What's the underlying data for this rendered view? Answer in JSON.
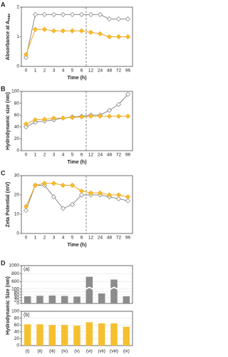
{
  "chart_data": [
    {
      "type": "line",
      "panel": "A",
      "ylabel": "Absorbance at A",
      "ylabel_sub": "max",
      "xlabel": "Time (h)",
      "categories": [
        "0",
        "1",
        "2",
        "3",
        "4",
        "5",
        "6",
        "12",
        "24",
        "48",
        "72",
        "96"
      ],
      "ylim": [
        0,
        2
      ],
      "yticks": [
        0,
        1,
        2
      ],
      "series": [
        {
          "color": "#8a8a8a",
          "fill": "#ffffff",
          "values": [
            0.3,
            1.75,
            1.75,
            1.75,
            1.75,
            1.75,
            1.75,
            1.75,
            1.75,
            1.6,
            1.6,
            1.6
          ]
        },
        {
          "color": "#f0a818",
          "fill": "#f5c030",
          "values": [
            0.4,
            1.25,
            1.25,
            1.2,
            1.2,
            1.2,
            1.2,
            1.15,
            1.1,
            1.0,
            1.0,
            1.0
          ]
        }
      ]
    },
    {
      "type": "line",
      "panel": "B",
      "ylabel": "Hydrodynamic size (nm)",
      "xlabel": "Time (h)",
      "categories": [
        "0",
        "1",
        "2",
        "3",
        "4",
        "5",
        "6",
        "12",
        "24",
        "48",
        "72",
        "96"
      ],
      "ylim": [
        0,
        100
      ],
      "yticks": [
        0,
        20,
        40,
        60,
        80,
        100
      ],
      "series": [
        {
          "color": "#8a8a8a",
          "fill": "#ffffff",
          "values": [
            40,
            48,
            50,
            52,
            55,
            57,
            58,
            60,
            60,
            68,
            78,
            95
          ]
        },
        {
          "color": "#f0a818",
          "fill": "#f5c030",
          "values": [
            45,
            52,
            53,
            55,
            55,
            56,
            57,
            58,
            58,
            58,
            58,
            58
          ]
        }
      ]
    },
    {
      "type": "line",
      "panel": "C",
      "ylabel": "Zeta Potential (mV)",
      "xlabel": "Time (h)",
      "categories": [
        "0",
        "1",
        "2",
        "3",
        "4",
        "5",
        "6",
        "12",
        "24",
        "48",
        "72",
        "96"
      ],
      "ylim": [
        0,
        30
      ],
      "yticks": [
        0,
        10,
        20,
        30
      ],
      "series": [
        {
          "color": "#8a8a8a",
          "fill": "#ffffff",
          "values": [
            12,
            25,
            25,
            19,
            13,
            15,
            20,
            20,
            20,
            19,
            18,
            17
          ]
        },
        {
          "color": "#f0a818",
          "fill": "#f5c030",
          "values": [
            14,
            25,
            26,
            26,
            25,
            25,
            22,
            21,
            21,
            20,
            20,
            19
          ]
        }
      ]
    },
    {
      "type": "bar",
      "panel": "D",
      "sublabel": "(a)",
      "ylabel": "Hydrodynamic Size (nm)",
      "color": "#8c8c8c",
      "grid": true,
      "categories": [
        "(i)",
        "(ii)",
        "(iii)",
        "(iv)",
        "(v)",
        "(vi)",
        "(vii)",
        "(viii)",
        "(ix)"
      ],
      "values": [
        50,
        53,
        55,
        52,
        48,
        720,
        300,
        650,
        50
      ],
      "ylim": [
        0,
        1000
      ],
      "ybreak": [
        100,
        500
      ],
      "yticks": [
        0,
        20,
        40,
        60,
        80,
        100,
        600,
        800,
        1000
      ]
    },
    {
      "type": "bar",
      "sublabel": "(b)",
      "color": "#f5c030",
      "grid": true,
      "categories": [
        "(i)",
        "(ii)",
        "(iii)",
        "(iv)",
        "(v)",
        "(vi)",
        "(vii)",
        "(viii)",
        "(ix)"
      ],
      "values": [
        62,
        62,
        60,
        60,
        58,
        68,
        65,
        65,
        55
      ],
      "ylim": [
        0,
        100
      ],
      "yticks": [
        0,
        20,
        40,
        60,
        80,
        100
      ]
    }
  ]
}
